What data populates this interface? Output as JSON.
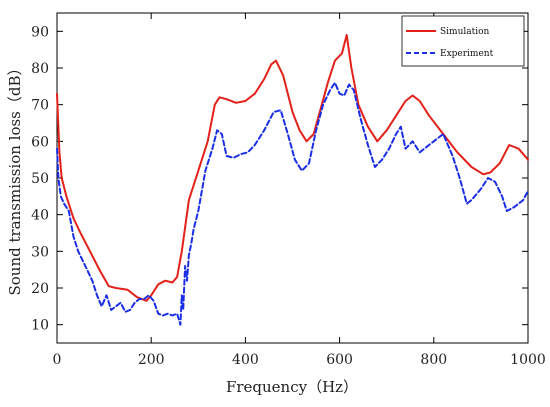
{
  "chart_data": {
    "type": "line",
    "title": "",
    "xlabel": "Frequency（Hz）",
    "ylabel": "Sound transmission loss（dB）",
    "xlim": [
      0,
      1000
    ],
    "ylim": [
      5,
      95
    ],
    "xticks": [
      0,
      200,
      400,
      600,
      800,
      1000
    ],
    "yticks": [
      10,
      20,
      30,
      40,
      50,
      60,
      70,
      80,
      90
    ],
    "grid": false,
    "legend_position": "top-right",
    "series": [
      {
        "name": "Simulation",
        "color": "#e32119",
        "style": "solid",
        "x": [
          0,
          5,
          10,
          20,
          35,
          50,
          70,
          90,
          110,
          125,
          150,
          170,
          190,
          200,
          215,
          230,
          245,
          255,
          265,
          280,
          300,
          320,
          335,
          345,
          360,
          380,
          400,
          420,
          440,
          455,
          465,
          480,
          500,
          515,
          530,
          545,
          560,
          575,
          590,
          605,
          615,
          625,
          640,
          660,
          680,
          700,
          720,
          740,
          755,
          770,
          790,
          820,
          850,
          880,
          905,
          920,
          940,
          960,
          980,
          1000
        ],
        "values": [
          73,
          57,
          50,
          45,
          39,
          35,
          30,
          25,
          20.5,
          20,
          19.5,
          17.5,
          16.5,
          18,
          21,
          22,
          21.5,
          23,
          30,
          44,
          52,
          60,
          70,
          72,
          71.5,
          70.5,
          71,
          73,
          77,
          81,
          82,
          78,
          68,
          63,
          60,
          62,
          69,
          76,
          82,
          84,
          89,
          80,
          70,
          64,
          60,
          63,
          67,
          71,
          72.5,
          71,
          67,
          62,
          57,
          53,
          51,
          51.5,
          54,
          59,
          58,
          55
        ]
      },
      {
        "name": "Experiment",
        "color": "#1a2ee8",
        "style": "dashed",
        "x": [
          0,
          3,
          8,
          15,
          25,
          35,
          45,
          60,
          75,
          85,
          95,
          105,
          115,
          125,
          135,
          145,
          155,
          165,
          175,
          185,
          195,
          205,
          215,
          225,
          235,
          245,
          255,
          262,
          265,
          268,
          272,
          276,
          280,
          285,
          290,
          300,
          315,
          330,
          340,
          350,
          360,
          375,
          390,
          405,
          420,
          440,
          460,
          475,
          490,
          505,
          520,
          535,
          550,
          565,
          580,
          590,
          600,
          610,
          620,
          630,
          645,
          660,
          675,
          690,
          705,
          720,
          730,
          740,
          755,
          770,
          785,
          800,
          820,
          840,
          855,
          870,
          880,
          900,
          915,
          930,
          945,
          955,
          970,
          990,
          1000
        ],
        "values": [
          58,
          50,
          45,
          43,
          41,
          34,
          30,
          26,
          22,
          18,
          15,
          18,
          14,
          15,
          16,
          13.5,
          14,
          16,
          17,
          17,
          18,
          16.5,
          13,
          12.5,
          13,
          12.5,
          13,
          10,
          18,
          14,
          26,
          22,
          29,
          32,
          36,
          41,
          52,
          58,
          63,
          62,
          56,
          55.5,
          56.5,
          57,
          59,
          63,
          68,
          68.5,
          62,
          55,
          52,
          54,
          63,
          70,
          74,
          76,
          73,
          72.5,
          75.5,
          74,
          66,
          59,
          53,
          55,
          58,
          62,
          64,
          58,
          60,
          57,
          58.5,
          60,
          62,
          56,
          50,
          43,
          44,
          47,
          50,
          49,
          45,
          41,
          42,
          44,
          46.5
        ]
      }
    ]
  }
}
